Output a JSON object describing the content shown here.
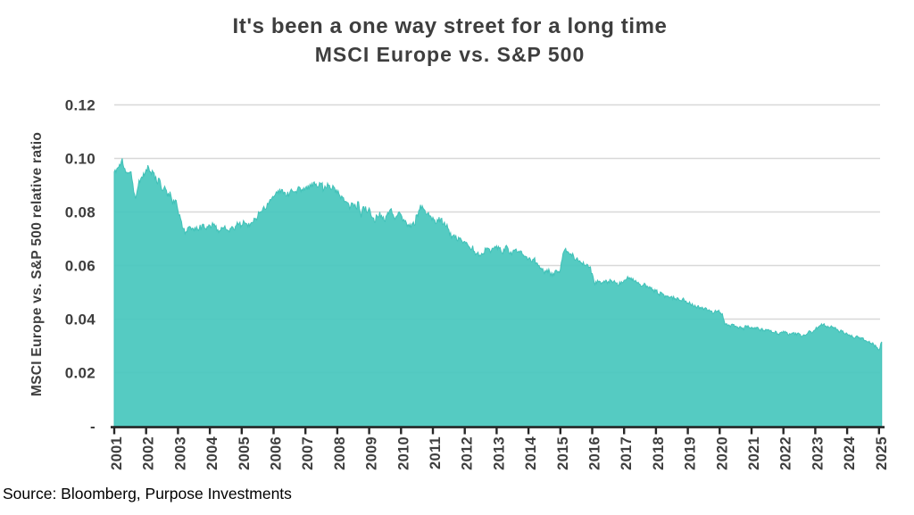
{
  "page": {
    "title": "It's been a one way street for a long time",
    "subtitle": "MSCI Europe vs. S&P 500",
    "source": "Source: Bloomberg, Purpose Investments"
  },
  "chart_data": {
    "type": "area",
    "title": "It's been a one way street for a long time",
    "subtitle": "MSCI Europe vs. S&P 500",
    "xlabel": "",
    "ylabel": "MSCI Europe vs. S&P 500 relative ratio",
    "ylim": [
      0,
      0.12
    ],
    "grid": "horizontal",
    "legend": "none",
    "x_start_year": 2001,
    "frequency": "monthly",
    "x_tick_labels": [
      "2001",
      "2002",
      "2003",
      "2004",
      "2005",
      "2006",
      "2007",
      "2008",
      "2009",
      "2010",
      "2011",
      "2012",
      "2013",
      "2014",
      "2015",
      "2016",
      "2017",
      "2018",
      "2019",
      "2020",
      "2021",
      "2022",
      "2023",
      "2024",
      "2025"
    ],
    "y_ticks": [
      {
        "value": 0.12,
        "label": "0.12"
      },
      {
        "value": 0.1,
        "label": "0.10"
      },
      {
        "value": 0.08,
        "label": "0.08"
      },
      {
        "value": 0.06,
        "label": "0.06"
      },
      {
        "value": 0.04,
        "label": "0.04"
      },
      {
        "value": 0.02,
        "label": "0.02"
      },
      {
        "value": 0,
        "label": "-"
      }
    ],
    "series": [
      {
        "name": "MSCI Europe vs. S&P 500 relative ratio",
        "values": [
          0.095,
          0.0962,
          0.0978,
          0.1,
          0.0962,
          0.0944,
          0.095,
          0.0906,
          0.085,
          0.0896,
          0.0925,
          0.0945,
          0.0958,
          0.0965,
          0.094,
          0.0946,
          0.091,
          0.0925,
          0.088,
          0.0896,
          0.0858,
          0.0876,
          0.0828,
          0.0845,
          0.0805,
          0.0774,
          0.0738,
          0.0726,
          0.0744,
          0.0734,
          0.073,
          0.0745,
          0.0736,
          0.075,
          0.074,
          0.0746,
          0.075,
          0.076,
          0.0745,
          0.0734,
          0.073,
          0.074,
          0.0736,
          0.073,
          0.074,
          0.0735,
          0.075,
          0.0756,
          0.075,
          0.0762,
          0.0755,
          0.0746,
          0.076,
          0.0775,
          0.0782,
          0.08,
          0.0814,
          0.081,
          0.083,
          0.0845,
          0.0856,
          0.0875,
          0.087,
          0.0884,
          0.0874,
          0.086,
          0.087,
          0.088,
          0.0875,
          0.0885,
          0.089,
          0.088,
          0.089,
          0.09,
          0.0895,
          0.091,
          0.0905,
          0.0896,
          0.0905,
          0.0885,
          0.089,
          0.09,
          0.0885,
          0.089,
          0.087,
          0.086,
          0.0855,
          0.084,
          0.0835,
          0.082,
          0.083,
          0.0815,
          0.0838,
          0.078,
          0.082,
          0.08,
          0.0815,
          0.078,
          0.0762,
          0.0785,
          0.08,
          0.0775,
          0.0765,
          0.0798,
          0.081,
          0.079,
          0.078,
          0.0798,
          0.079,
          0.0772,
          0.076,
          0.0746,
          0.0755,
          0.075,
          0.079,
          0.081,
          0.0823,
          0.0806,
          0.0795,
          0.0786,
          0.078,
          0.0756,
          0.0766,
          0.0775,
          0.0755,
          0.0745,
          0.0734,
          0.07,
          0.0715,
          0.0695,
          0.07,
          0.069,
          0.069,
          0.068,
          0.0665,
          0.0674,
          0.064,
          0.065,
          0.0636,
          0.0645,
          0.066,
          0.0664,
          0.0655,
          0.0665,
          0.0674,
          0.0665,
          0.0646,
          0.0655,
          0.067,
          0.0645,
          0.065,
          0.066,
          0.065,
          0.0655,
          0.064,
          0.0634,
          0.0625,
          0.0615,
          0.0624,
          0.061,
          0.06,
          0.0585,
          0.057,
          0.0585,
          0.0575,
          0.056,
          0.058,
          0.0574,
          0.0585,
          0.0645,
          0.0664,
          0.065,
          0.0644,
          0.0635,
          0.0625,
          0.0615,
          0.061,
          0.06,
          0.0605,
          0.0594,
          0.057,
          0.0526,
          0.0545,
          0.054,
          0.0535,
          0.0545,
          0.054,
          0.0545,
          0.054,
          0.0534,
          0.0525,
          0.054,
          0.0545,
          0.055,
          0.0555,
          0.0545,
          0.054,
          0.0534,
          0.053,
          0.0525,
          0.053,
          0.052,
          0.0515,
          0.051,
          0.0505,
          0.0494,
          0.05,
          0.049,
          0.0485,
          0.048,
          0.0485,
          0.0474,
          0.048,
          0.047,
          0.0475,
          0.0465,
          0.046,
          0.0455,
          0.045,
          0.0445,
          0.045,
          0.044,
          0.0435,
          0.044,
          0.0435,
          0.043,
          0.0425,
          0.043,
          0.0425,
          0.042,
          0.038,
          0.0375,
          0.037,
          0.038,
          0.0374,
          0.0365,
          0.037,
          0.036,
          0.0375,
          0.037,
          0.037,
          0.0364,
          0.037,
          0.036,
          0.0365,
          0.0355,
          0.036,
          0.0355,
          0.035,
          0.0355,
          0.0345,
          0.035,
          0.0355,
          0.035,
          0.034,
          0.0345,
          0.035,
          0.034,
          0.0345,
          0.0335,
          0.034,
          0.0345,
          0.0355,
          0.035,
          0.036,
          0.037,
          0.0375,
          0.038,
          0.0374,
          0.037,
          0.0375,
          0.0365,
          0.036,
          0.035,
          0.0355,
          0.0345,
          0.0345,
          0.034,
          0.0334,
          0.033,
          0.0335,
          0.0325,
          0.033,
          0.032,
          0.0314,
          0.031,
          0.0305,
          0.0295,
          0.0285,
          0.0315
        ]
      }
    ],
    "colors": {
      "area_fill": "#4CC8BF",
      "area_stroke": "#41C1B8",
      "gridline": "#D8D8D8",
      "axis": "#262626",
      "text": "#3E3E3E",
      "source_text": "#000000",
      "background": "#FFFFFF"
    }
  }
}
